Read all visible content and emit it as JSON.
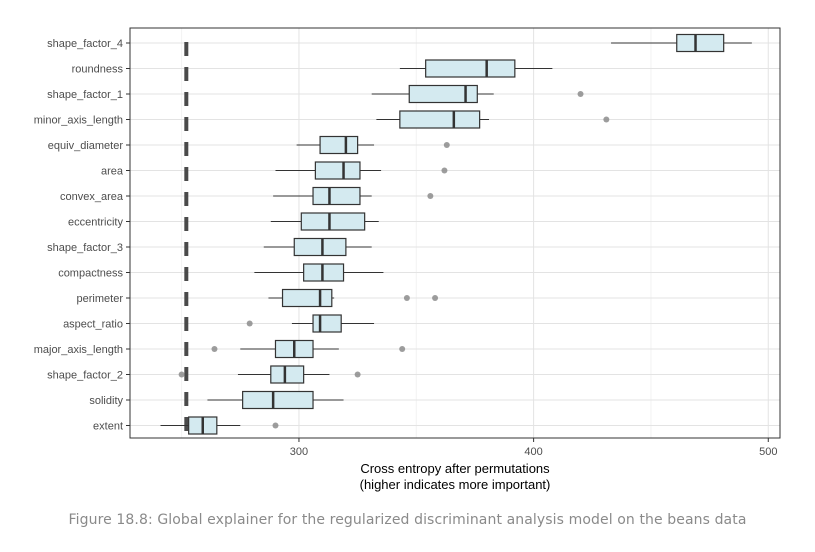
{
  "chart_data": {
    "type": "boxplot",
    "xlabel_lines": [
      "Cross entropy after permutations",
      "(higher indicates more important)"
    ],
    "ylabel": "",
    "xlim": [
      228,
      505
    ],
    "x_ticks": [
      300,
      400,
      500
    ],
    "grid": true,
    "baseline_value": 252,
    "colors": {
      "box_fill": "#d4eaf0",
      "box_stroke": "#333333",
      "outlier": "#8c8c8c",
      "grid_major": "#e3e3e3",
      "grid_minor": "#f2f2f2",
      "panel_border": "#333333",
      "baseline": "#4a4a4a"
    },
    "categories": [
      "shape_factor_4",
      "roundness",
      "shape_factor_1",
      "minor_axis_length",
      "equiv_diameter",
      "area",
      "convex_area",
      "eccentricity",
      "shape_factor_3",
      "compactness",
      "perimeter",
      "aspect_ratio",
      "major_axis_length",
      "shape_factor_2",
      "solidity",
      "extent"
    ],
    "boxes": [
      {
        "label": "shape_factor_4",
        "whisker_low": 433,
        "q1": 461,
        "median": 469,
        "q3": 481,
        "whisker_high": 493,
        "outliers": []
      },
      {
        "label": "roundness",
        "whisker_low": 343,
        "q1": 354,
        "median": 380,
        "q3": 392,
        "whisker_high": 408,
        "outliers": []
      },
      {
        "label": "shape_factor_1",
        "whisker_low": 331,
        "q1": 347,
        "median": 371,
        "q3": 376,
        "whisker_high": 383,
        "outliers": [
          420
        ]
      },
      {
        "label": "minor_axis_length",
        "whisker_low": 333,
        "q1": 343,
        "median": 366,
        "q3": 377,
        "whisker_high": 381,
        "outliers": [
          431
        ]
      },
      {
        "label": "equiv_diameter",
        "whisker_low": 299,
        "q1": 309,
        "median": 320,
        "q3": 325,
        "whisker_high": 332,
        "outliers": [
          363
        ]
      },
      {
        "label": "area",
        "whisker_low": 290,
        "q1": 307,
        "median": 319,
        "q3": 326,
        "whisker_high": 335,
        "outliers": [
          362
        ]
      },
      {
        "label": "convex_area",
        "whisker_low": 289,
        "q1": 306,
        "median": 313,
        "q3": 326,
        "whisker_high": 331,
        "outliers": [
          356
        ]
      },
      {
        "label": "eccentricity",
        "whisker_low": 288,
        "q1": 301,
        "median": 313,
        "q3": 328,
        "whisker_high": 334,
        "outliers": []
      },
      {
        "label": "shape_factor_3",
        "whisker_low": 285,
        "q1": 298,
        "median": 310,
        "q3": 320,
        "whisker_high": 331,
        "outliers": []
      },
      {
        "label": "compactness",
        "whisker_low": 281,
        "q1": 302,
        "median": 310,
        "q3": 319,
        "whisker_high": 336,
        "outliers": []
      },
      {
        "label": "perimeter",
        "whisker_low": 287,
        "q1": 293,
        "median": 309,
        "q3": 314,
        "whisker_high": 315,
        "outliers": [
          346,
          358
        ]
      },
      {
        "label": "aspect_ratio",
        "whisker_low": 297,
        "q1": 306,
        "median": 309,
        "q3": 318,
        "whisker_high": 332,
        "outliers": [
          279
        ]
      },
      {
        "label": "major_axis_length",
        "whisker_low": 275,
        "q1": 290,
        "median": 298,
        "q3": 306,
        "whisker_high": 317,
        "outliers": [
          264,
          344
        ]
      },
      {
        "label": "shape_factor_2",
        "whisker_low": 274,
        "q1": 288,
        "median": 294,
        "q3": 302,
        "whisker_high": 313,
        "outliers": [
          250,
          325
        ]
      },
      {
        "label": "solidity",
        "whisker_low": 261,
        "q1": 276,
        "median": 289,
        "q3": 306,
        "whisker_high": 319,
        "outliers": []
      },
      {
        "label": "extent",
        "whisker_low": 241,
        "q1": 253,
        "median": 259,
        "q3": 265,
        "whisker_high": 275,
        "outliers": [
          290
        ]
      }
    ]
  },
  "caption": "Figure 18.8: Global explainer for the regularized discriminant analysis model on the beans data"
}
